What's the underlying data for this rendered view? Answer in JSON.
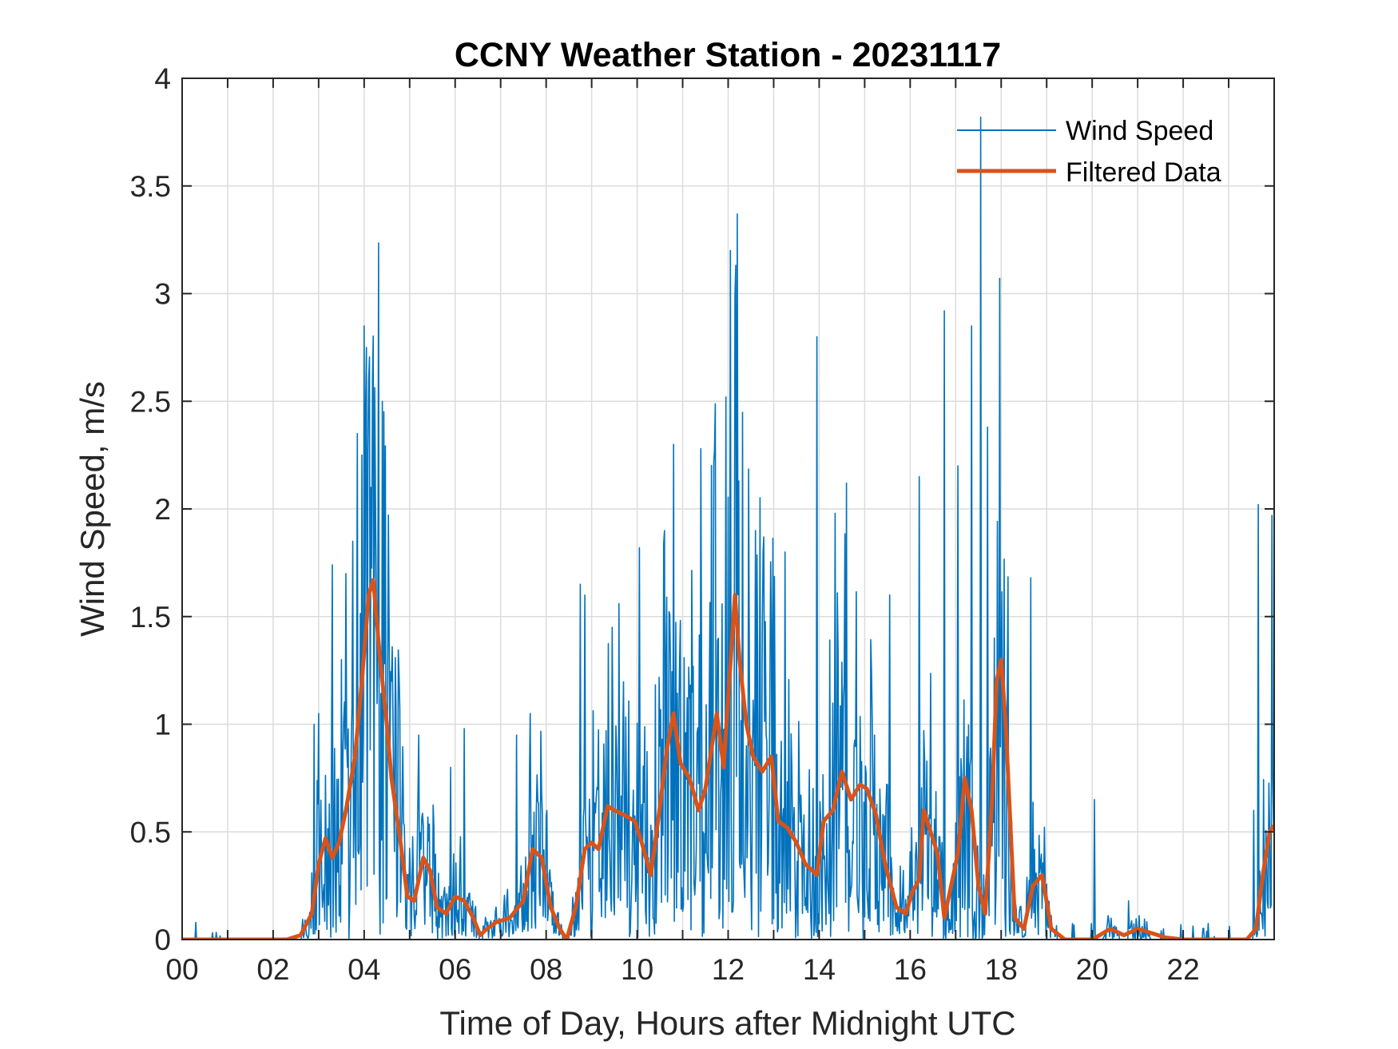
{
  "chart_data": {
    "type": "line",
    "title": "CCNY Weather Station - 20231117",
    "xlabel": "Time of Day, Hours after Midnight UTC",
    "ylabel": "Wind Speed, m/s",
    "xlim": [
      0,
      24
    ],
    "ylim": [
      0,
      4
    ],
    "grid": true,
    "legend_position": "top-right",
    "x_ticks": [
      0,
      2,
      4,
      6,
      8,
      10,
      12,
      14,
      16,
      18,
      20,
      22
    ],
    "x_tick_labels": [
      "00",
      "02",
      "04",
      "06",
      "08",
      "10",
      "12",
      "14",
      "16",
      "18",
      "20",
      "22"
    ],
    "y_ticks": [
      0,
      0.5,
      1,
      1.5,
      2,
      2.5,
      3,
      3.5,
      4
    ],
    "y_tick_labels": [
      "0",
      "0.5",
      "1",
      "1.5",
      "2",
      "2.5",
      "3",
      "3.5",
      "4"
    ],
    "series": [
      {
        "name": "Wind Speed",
        "color": "#0072BD",
        "style": "thin",
        "peaks": [
          [
            2.9,
            1.0
          ],
          [
            3.0,
            1.05
          ],
          [
            3.3,
            1.74
          ],
          [
            3.5,
            1.3
          ],
          [
            3.6,
            1.7
          ],
          [
            3.75,
            1.85
          ],
          [
            3.85,
            2.35
          ],
          [
            3.95,
            2.25
          ],
          [
            4.0,
            2.85
          ],
          [
            4.05,
            2.75
          ],
          [
            4.1,
            2.6
          ],
          [
            4.15,
            2.1
          ],
          [
            4.25,
            2.0
          ],
          [
            4.4,
            2.5
          ],
          [
            4.6,
            1.2
          ],
          [
            5.2,
            0.95
          ],
          [
            5.9,
            0.8
          ],
          [
            6.2,
            0.98
          ],
          [
            7.35,
            0.95
          ],
          [
            7.65,
            1.05
          ],
          [
            8.75,
            1.65
          ],
          [
            8.85,
            1.6
          ],
          [
            9.45,
            1.45
          ],
          [
            9.6,
            1.56
          ],
          [
            10.05,
            1.82
          ],
          [
            10.6,
            1.9
          ],
          [
            10.8,
            2.3
          ],
          [
            11.4,
            2.28
          ],
          [
            11.7,
            2.27
          ],
          [
            11.95,
            2.52
          ],
          [
            12.05,
            3.2
          ],
          [
            12.2,
            3.37
          ],
          [
            12.6,
            1.9
          ],
          [
            13.25,
            1.8
          ],
          [
            13.95,
            2.8
          ],
          [
            14.35,
            1.98
          ],
          [
            14.6,
            2.12
          ],
          [
            15.55,
            1.6
          ],
          [
            16.2,
            2.15
          ],
          [
            16.75,
            2.92
          ],
          [
            17.05,
            2.2
          ],
          [
            17.35,
            2.85
          ],
          [
            17.55,
            3.82
          ],
          [
            17.7,
            2.38
          ],
          [
            18.05,
            0.96
          ],
          [
            18.65,
            1.68
          ],
          [
            20.05,
            0.65
          ],
          [
            20.8,
            0.18
          ],
          [
            23.55,
            0.6
          ],
          [
            23.65,
            2.02
          ],
          [
            23.95,
            1.97
          ]
        ]
      },
      {
        "name": "Filtered Data",
        "color": "#D95319",
        "style": "thick",
        "x": [
          0,
          1,
          2.3,
          2.6,
          2.85,
          3.0,
          3.15,
          3.3,
          3.45,
          3.6,
          3.8,
          3.95,
          4.1,
          4.2,
          4.35,
          4.5,
          4.6,
          4.8,
          4.95,
          5.1,
          5.3,
          5.45,
          5.6,
          5.8,
          6.0,
          6.2,
          6.4,
          6.55,
          6.7,
          6.9,
          7.2,
          7.5,
          7.7,
          7.9,
          8.1,
          8.3,
          8.45,
          8.65,
          8.85,
          9.0,
          9.15,
          9.35,
          9.5,
          9.7,
          9.95,
          10.1,
          10.3,
          10.5,
          10.65,
          10.8,
          10.95,
          11.15,
          11.35,
          11.5,
          11.75,
          11.9,
          12.0,
          12.15,
          12.25,
          12.4,
          12.55,
          12.75,
          12.95,
          13.1,
          13.3,
          13.5,
          13.7,
          13.95,
          14.1,
          14.3,
          14.5,
          14.7,
          14.9,
          15.05,
          15.25,
          15.45,
          15.7,
          15.9,
          16.05,
          16.2,
          16.3,
          16.45,
          16.6,
          16.75,
          16.9,
          17.05,
          17.2,
          17.35,
          17.5,
          17.65,
          17.8,
          17.9,
          18.0,
          18.1,
          18.3,
          18.5,
          18.7,
          18.9,
          19.1,
          19.4,
          19.7,
          20.0,
          20.4,
          20.7,
          21.0,
          21.3,
          21.6,
          22.0,
          22.5,
          23.0,
          23.4,
          23.6,
          23.75,
          23.9,
          24.0
        ],
        "y": [
          0,
          0,
          0,
          0.02,
          0.12,
          0.35,
          0.47,
          0.38,
          0.45,
          0.6,
          0.85,
          1.2,
          1.6,
          1.67,
          1.3,
          1.0,
          0.75,
          0.45,
          0.2,
          0.18,
          0.38,
          0.32,
          0.15,
          0.12,
          0.2,
          0.18,
          0.1,
          0.02,
          0.05,
          0.08,
          0.1,
          0.18,
          0.42,
          0.38,
          0.15,
          0.05,
          0.0,
          0.15,
          0.42,
          0.45,
          0.42,
          0.62,
          0.6,
          0.58,
          0.55,
          0.45,
          0.3,
          0.62,
          0.88,
          1.05,
          0.82,
          0.75,
          0.6,
          0.7,
          1.05,
          0.8,
          1.12,
          1.6,
          1.3,
          1.0,
          0.85,
          0.78,
          0.85,
          0.55,
          0.52,
          0.45,
          0.35,
          0.3,
          0.55,
          0.6,
          0.78,
          0.65,
          0.72,
          0.7,
          0.58,
          0.35,
          0.15,
          0.12,
          0.22,
          0.28,
          0.6,
          0.5,
          0.4,
          0.1,
          0.25,
          0.4,
          0.75,
          0.6,
          0.25,
          0.12,
          0.65,
          1.2,
          1.3,
          1.0,
          0.1,
          0.05,
          0.25,
          0.3,
          0.05,
          0.0,
          0.0,
          0.0,
          0.05,
          0.02,
          0.05,
          0.03,
          0.01,
          0.0,
          0.0,
          0.0,
          0.0,
          0.05,
          0.3,
          0.5,
          0.53
        ]
      }
    ]
  }
}
